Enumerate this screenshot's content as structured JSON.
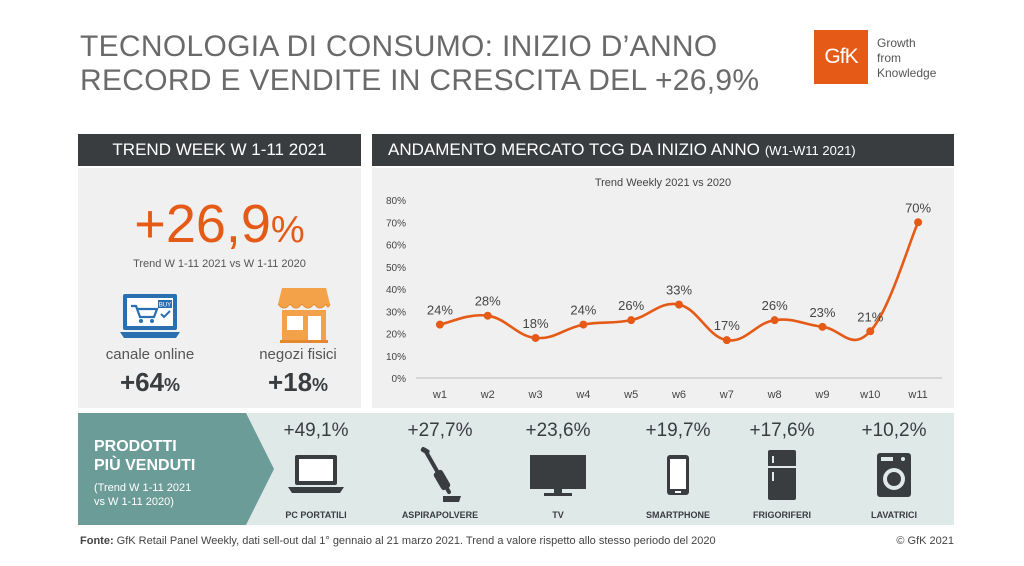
{
  "title": {
    "line1": "TECNOLOGIA DI CONSUMO: INIZIO D’ANNO",
    "line2": "RECORD E VENDITE IN CRESCITA DEL +26,9%"
  },
  "logo": {
    "mark": "GfK",
    "line1": "Growth",
    "line2": "from",
    "line3": "Knowledge"
  },
  "left_header": "TREND WEEK W 1-11 2021",
  "right_header": {
    "main": "ANDAMENTO MERCATO TCG DA INIZIO ANNO",
    "small": "(W1-W11 2021)"
  },
  "kpi": {
    "number": "+26,9",
    "unit": "%",
    "subtitle": "Trend W 1-11 2021 vs W 1-11 2020"
  },
  "channels": [
    {
      "label": "canale online",
      "value": "+64",
      "unit": "%",
      "icon": "laptop-cart-icon",
      "badge": "BUY"
    },
    {
      "label": "negozi fisici",
      "value": "+18",
      "unit": "%",
      "icon": "store-icon"
    }
  ],
  "chart_data": {
    "type": "line",
    "title": "Trend Weekly 2021 vs 2020",
    "x": [
      "w1",
      "w2",
      "w3",
      "w4",
      "w5",
      "w6",
      "w7",
      "w8",
      "w9",
      "w10",
      "w11"
    ],
    "series": [
      {
        "values": [
          24,
          28,
          18,
          24,
          26,
          33,
          17,
          26,
          23,
          21,
          70
        ]
      }
    ],
    "data_labels": [
      "24%",
      "28%",
      "18%",
      "24%",
      "26%",
      "33%",
      "17%",
      "26%",
      "23%",
      "21%",
      "70%"
    ],
    "yticks": [
      "0%",
      "10%",
      "20%",
      "30%",
      "40%",
      "50%",
      "60%",
      "70%",
      "80%"
    ],
    "ylim": [
      0,
      80
    ],
    "grid": false,
    "color": "#e55a17"
  },
  "products_section": {
    "title_line1": "PRODOTTI",
    "title_line2": "PIÙ VENDUTI",
    "sub_line1": "(Trend W 1-11 2021",
    "sub_line2": "vs W 1-11 2020)",
    "items": [
      {
        "value": "+49,1%",
        "name": "PC PORTATILI",
        "icon": "laptop-icon"
      },
      {
        "value": "+27,7%",
        "name": "ASPIRAPOLVERE",
        "icon": "vacuum-icon"
      },
      {
        "value": "+23,6%",
        "name": "TV",
        "icon": "tv-icon"
      },
      {
        "value": "+19,7%",
        "name": "SMARTPHONE",
        "icon": "smartphone-icon"
      },
      {
        "value": "+17,6%",
        "name": "FRIGORIFERI",
        "icon": "fridge-icon"
      },
      {
        "value": "+10,2%",
        "name": "LAVATRICI",
        "icon": "washing-machine-icon"
      }
    ]
  },
  "footer": {
    "label": "Fonte:",
    "text": " GfK Retail Panel Weekly, dati sell-out dal 1° gennaio al 21 marzo 2021. Trend a valore rispetto allo stesso periodo del 2020",
    "copyright": "© GfK 2021"
  },
  "colors": {
    "accent": "#e55a17",
    "dark": "#3a3d40",
    "teal": "#6b9c98",
    "teal_light": "#dfe9e8",
    "panel": "#f0f0f0"
  }
}
